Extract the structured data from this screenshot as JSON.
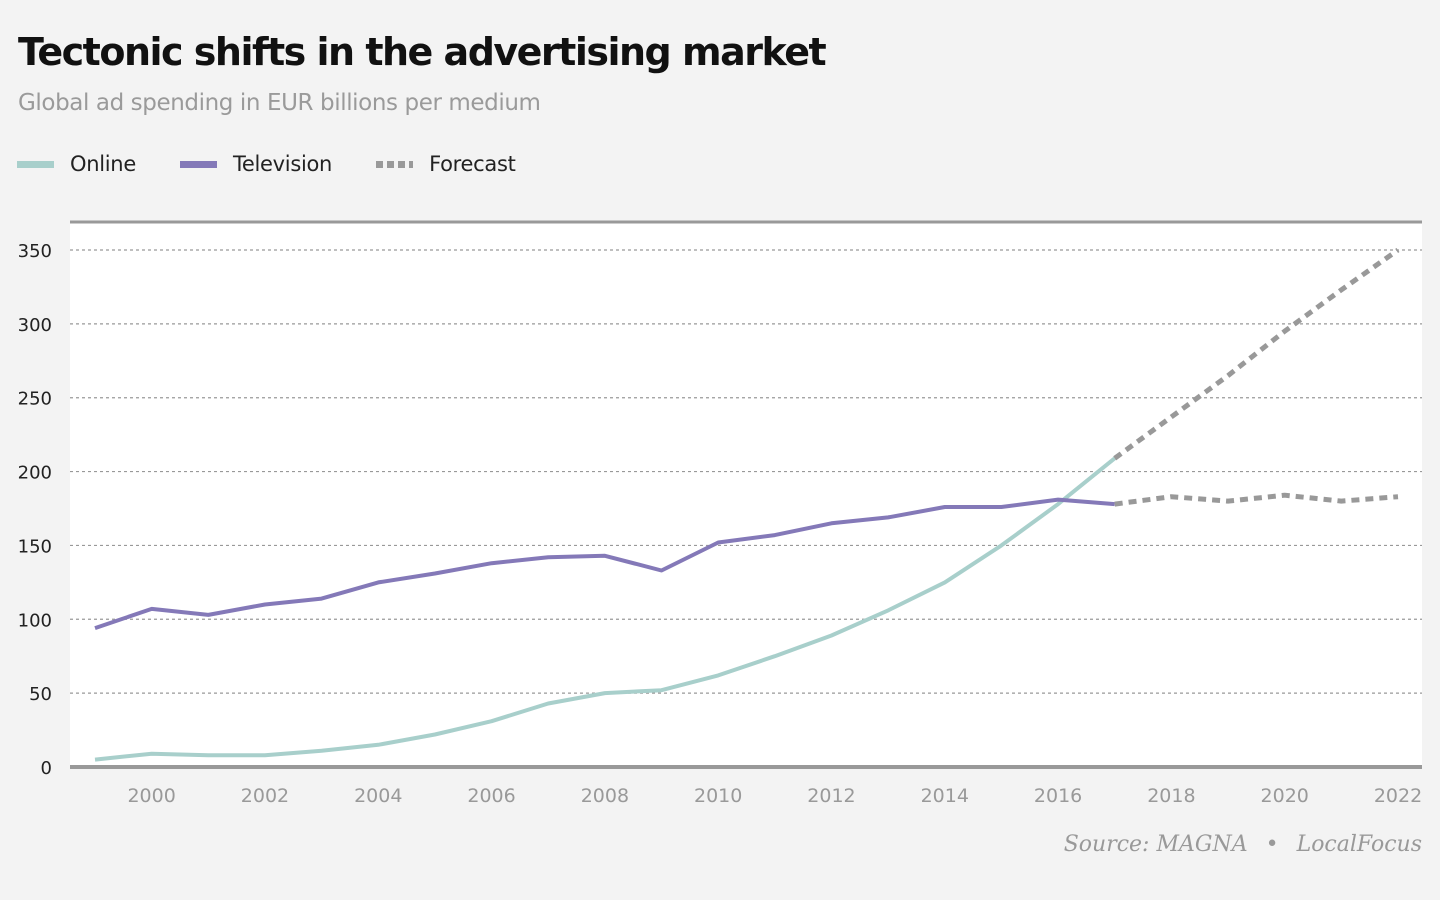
{
  "header": {
    "title": "Tectonic shifts in the advertising market",
    "subtitle": "Global ad spending in EUR billions per medium"
  },
  "legend": [
    {
      "label": "Online",
      "color": "#a8cfcb",
      "style": "solid"
    },
    {
      "label": "Television",
      "color": "#8479b8",
      "style": "solid"
    },
    {
      "label": "Forecast",
      "color": "#999999",
      "style": "dotted"
    }
  ],
  "footer": {
    "source": "Source: MAGNA",
    "separator": "•",
    "credit": "LocalFocus"
  },
  "chart_data": {
    "type": "line",
    "title": "Tectonic shifts in the advertising market",
    "subtitle": "Global ad spending in EUR billions per medium",
    "xlabel": "",
    "ylabel": "",
    "xlim": [
      1999,
      2022
    ],
    "ylim": [
      0,
      350
    ],
    "yticks": [
      0,
      50,
      100,
      150,
      200,
      250,
      300,
      350
    ],
    "xticks": [
      2000,
      2002,
      2004,
      2006,
      2008,
      2010,
      2012,
      2014,
      2016,
      2018,
      2020,
      2022
    ],
    "grid": true,
    "legend_position": "top-left",
    "series": [
      {
        "name": "Online",
        "color": "#a8cfcb",
        "style": "solid",
        "x": [
          1999,
          2000,
          2001,
          2002,
          2003,
          2004,
          2005,
          2006,
          2007,
          2008,
          2009,
          2010,
          2011,
          2012,
          2013,
          2014,
          2015,
          2016,
          2017
        ],
        "values": [
          5,
          9,
          8,
          8,
          11,
          15,
          22,
          31,
          43,
          50,
          52,
          62,
          75,
          89,
          106,
          125,
          150,
          178,
          209
        ]
      },
      {
        "name": "Television",
        "color": "#8479b8",
        "style": "solid",
        "x": [
          1999,
          2000,
          2001,
          2002,
          2003,
          2004,
          2005,
          2006,
          2007,
          2008,
          2009,
          2010,
          2011,
          2012,
          2013,
          2014,
          2015,
          2016,
          2017
        ],
        "values": [
          94,
          107,
          103,
          110,
          114,
          125,
          131,
          138,
          142,
          143,
          133,
          152,
          157,
          165,
          169,
          176,
          176,
          181,
          178
        ]
      },
      {
        "name": "Online forecast",
        "color": "#999999",
        "style": "dotted",
        "x": [
          2017,
          2018,
          2019,
          2020,
          2021,
          2022
        ],
        "values": [
          209,
          237,
          265,
          295,
          323,
          350
        ]
      },
      {
        "name": "Television forecast",
        "color": "#999999",
        "style": "dotted",
        "x": [
          2017,
          2018,
          2019,
          2020,
          2021,
          2022
        ],
        "values": [
          178,
          183,
          180,
          184,
          180,
          183
        ]
      }
    ],
    "source": "Source: MAGNA • LocalFocus"
  }
}
